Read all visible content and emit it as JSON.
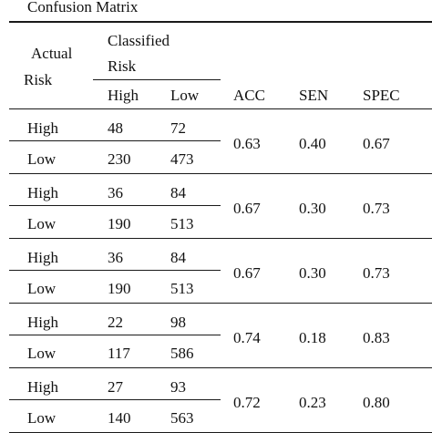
{
  "table": {
    "caption": "Confusion Matrix",
    "header": {
      "actual": "Actual",
      "actual_risk": "Risk",
      "classified": "Classified",
      "classified_risk": "Risk",
      "col_high": "High",
      "col_low": "Low",
      "acc": "ACC",
      "sen": "SEN",
      "spec": "SPEC"
    },
    "groups": [
      {
        "high_row": [
          "High",
          "48",
          "72"
        ],
        "low_row": [
          "Low",
          "230",
          "473"
        ],
        "acc": "0.63",
        "sen": "0.40",
        "spec": "0.67"
      },
      {
        "high_row": [
          "High",
          "36",
          "84"
        ],
        "low_row": [
          "Low",
          "190",
          "513"
        ],
        "acc": "0.67",
        "sen": "0.30",
        "spec": "0.73"
      },
      {
        "high_row": [
          "High",
          "36",
          "84"
        ],
        "low_row": [
          "Low",
          "190",
          "513"
        ],
        "acc": "0.67",
        "sen": "0.30",
        "spec": "0.73"
      },
      {
        "high_row": [
          "High",
          "22",
          "98"
        ],
        "low_row": [
          "Low",
          "117",
          "586"
        ],
        "acc": "0.74",
        "sen": "0.18",
        "spec": "0.83"
      },
      {
        "high_row": [
          "High",
          "27",
          "93"
        ],
        "low_row": [
          "Low",
          "140",
          "563"
        ],
        "acc": "0.72",
        "sen": "0.23",
        "spec": "0.80"
      }
    ]
  }
}
